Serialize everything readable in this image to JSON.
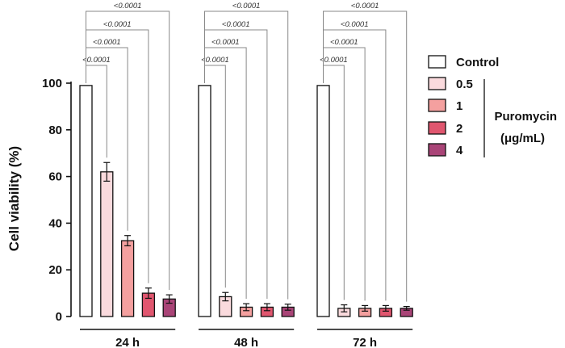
{
  "chart_data": {
    "type": "bar",
    "ylabel": "Cell viability (%)",
    "ylim": [
      0,
      100
    ],
    "yticks": [
      "0",
      "20",
      "40",
      "60",
      "80",
      "100"
    ],
    "categories": [
      "24 h",
      "48 h",
      "72 h"
    ],
    "series": [
      {
        "name": "Control",
        "color": "#ffffff",
        "values": [
          99,
          99,
          99
        ],
        "errors": [
          0,
          0,
          0
        ]
      },
      {
        "name": "0.5",
        "color": "#fadadd",
        "values": [
          62,
          8.5,
          3.5
        ],
        "errors": [
          4,
          1.8,
          1.5
        ]
      },
      {
        "name": "1",
        "color": "#f4a09f",
        "values": [
          32.5,
          4,
          3.5
        ],
        "errors": [
          2.2,
          1.5,
          1.2
        ]
      },
      {
        "name": "2",
        "color": "#e0566f",
        "values": [
          10,
          4,
          3.5
        ],
        "errors": [
          2.2,
          1.5,
          1.2
        ]
      },
      {
        "name": "4",
        "color": "#a94477",
        "values": [
          7.5,
          4,
          3.5
        ],
        "errors": [
          1.8,
          1.3,
          0.8
        ]
      }
    ],
    "significance_label": "<0.0001",
    "legend": {
      "position": "right",
      "group_label_line1": "Puromycin",
      "group_label_line2": "(μg/mL)"
    }
  }
}
